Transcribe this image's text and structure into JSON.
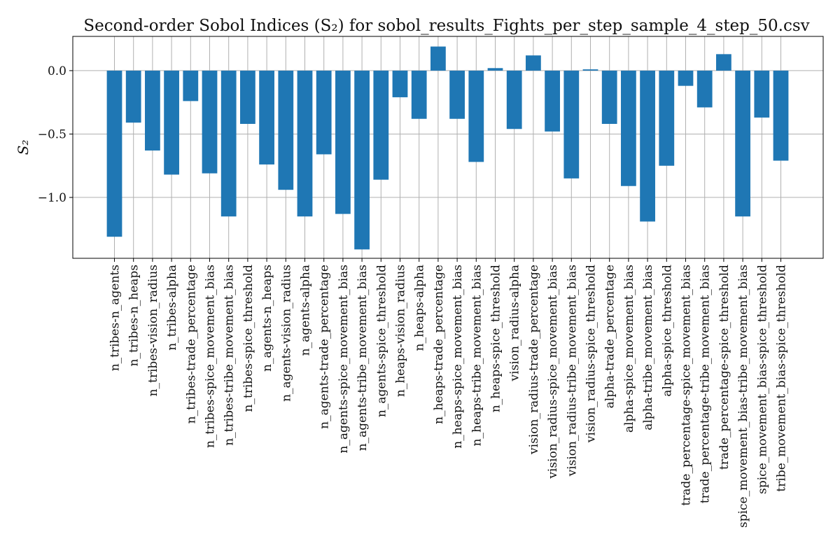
{
  "chart_data": {
    "type": "bar",
    "title": "Second-order Sobol Indices (S₂) for sobol_results_Fights_per_step_sample_4_step_50.csv",
    "xlabel": "",
    "ylabel": "S₂",
    "ylim": [
      -1.48,
      0.27
    ],
    "yticks": [
      0.0,
      -0.5,
      -1.0
    ],
    "ytick_labels": [
      "0.0",
      "−0.5",
      "−1.0"
    ],
    "grid": true,
    "bar_color": "#1f77b4",
    "categories": [
      "n_tribes-n_agents",
      "n_tribes-n_heaps",
      "n_tribes-vision_radius",
      "n_tribes-alpha",
      "n_tribes-trade_percentage",
      "n_tribes-spice_movement_bias",
      "n_tribes-tribe_movement_bias",
      "n_tribes-spice_threshold",
      "n_agents-n_heaps",
      "n_agents-vision_radius",
      "n_agents-alpha",
      "n_agents-trade_percentage",
      "n_agents-spice_movement_bias",
      "n_agents-tribe_movement_bias",
      "n_agents-spice_threshold",
      "n_heaps-vision_radius",
      "n_heaps-alpha",
      "n_heaps-trade_percentage",
      "n_heaps-spice_movement_bias",
      "n_heaps-tribe_movement_bias",
      "n_heaps-spice_threshold",
      "vision_radius-alpha",
      "vision_radius-trade_percentage",
      "vision_radius-spice_movement_bias",
      "vision_radius-tribe_movement_bias",
      "vision_radius-spice_threshold",
      "alpha-trade_percentage",
      "alpha-spice_movement_bias",
      "alpha-tribe_movement_bias",
      "alpha-spice_threshold",
      "trade_percentage-spice_movement_bias",
      "trade_percentage-tribe_movement_bias",
      "trade_percentage-spice_threshold",
      "spice_movement_bias-tribe_movement_bias",
      "spice_movement_bias-spice_threshold",
      "tribe_movement_bias-spice_threshold"
    ],
    "values": [
      -1.31,
      -0.41,
      -0.63,
      -0.82,
      -0.24,
      -0.81,
      -1.15,
      -0.42,
      -0.74,
      -0.94,
      -1.15,
      -0.66,
      -1.13,
      -1.41,
      -0.86,
      -0.21,
      -0.38,
      0.19,
      -0.38,
      -0.72,
      0.02,
      -0.46,
      0.12,
      -0.48,
      -0.85,
      0.01,
      -0.42,
      -0.91,
      -1.19,
      -0.75,
      -0.12,
      -0.29,
      0.13,
      -1.15,
      -0.37,
      -0.71
    ]
  }
}
